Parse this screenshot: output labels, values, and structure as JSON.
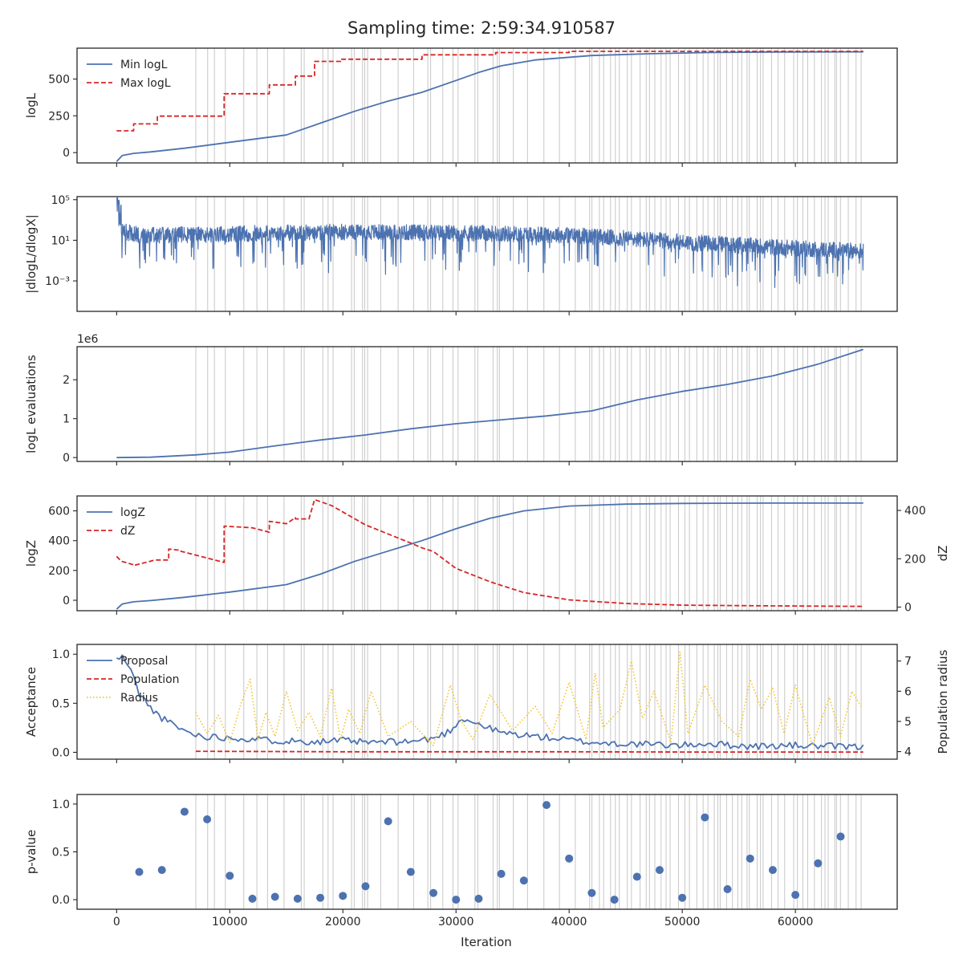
{
  "figure": {
    "title": "Sampling time: 2:59:34.910587",
    "xlabel": "Iteration",
    "xlim": [
      -3500,
      69000
    ],
    "xticks": [
      0,
      10000,
      20000,
      30000,
      40000,
      50000,
      60000
    ],
    "xtick_labels": [
      "0",
      "10000",
      "20000",
      "30000",
      "40000",
      "50000",
      "60000"
    ],
    "colors": {
      "blue": "#4c72b0",
      "red": "#d62728",
      "yellow": "#f2c42f",
      "bounds": "#cccccc"
    }
  },
  "chart_data": [
    {
      "type": "line",
      "ylabel": "logL",
      "ylim": [
        -70,
        710
      ],
      "yticks": [
        0,
        250,
        500
      ],
      "ytick_labels": [
        "0",
        "250",
        "500"
      ],
      "legend": "top-left",
      "series": [
        {
          "name": "Min logL",
          "style": "solid",
          "color": "#4c72b0",
          "x": [
            0,
            500,
            1500,
            3000,
            6000,
            10000,
            15000,
            18000,
            21000,
            24000,
            27000,
            30000,
            32000,
            34000,
            37000,
            42000,
            47000,
            52000,
            58000,
            66000
          ],
          "y": [
            -60,
            -20,
            -5,
            5,
            30,
            70,
            120,
            200,
            280,
            350,
            410,
            490,
            545,
            590,
            630,
            660,
            672,
            680,
            684,
            685
          ]
        },
        {
          "name": "Max logL",
          "style": "dashed",
          "color": "#d62728",
          "x": [
            0,
            1500,
            1500,
            3600,
            3600,
            9500,
            9500,
            13500,
            13500,
            15800,
            15800,
            17500,
            17500,
            19800,
            19800,
            27000,
            27000,
            33500,
            33500,
            40000,
            40000,
            66000
          ],
          "y": [
            148,
            148,
            195,
            195,
            248,
            248,
            400,
            400,
            460,
            460,
            520,
            520,
            620,
            620,
            635,
            635,
            665,
            665,
            680,
            680,
            688,
            688
          ]
        }
      ]
    },
    {
      "type": "line",
      "ylabel": "|dlogL/dlogX|",
      "yscale": "log",
      "ylim_log10": [
        -6,
        5.3
      ],
      "yticks_log10": [
        -3,
        1,
        5
      ],
      "ytick_labels": [
        "10⁻³",
        "10¹",
        "10⁵"
      ],
      "series": [
        {
          "name": "",
          "style": "noisy",
          "color": "#4c72b0",
          "x": [
            0,
            300,
            2000,
            5000,
            10000,
            15000,
            20000,
            30000,
            40000,
            50000,
            60000,
            66000
          ],
          "y_log10": [
            4.2,
            2.0,
            1.6,
            1.6,
            1.7,
            1.8,
            1.9,
            1.8,
            1.6,
            0.9,
            0.3,
            0.0
          ]
        }
      ]
    },
    {
      "type": "line",
      "ylabel": "logL evaluations",
      "offset_label": "1e6",
      "ylim": [
        -0.1,
        2.85
      ],
      "yticks": [
        0,
        1,
        2
      ],
      "ytick_labels": [
        "0",
        "1",
        "2"
      ],
      "series": [
        {
          "name": "",
          "style": "solid",
          "color": "#4c72b0",
          "x": [
            0,
            3000,
            7000,
            10000,
            14000,
            18000,
            22000,
            26000,
            30000,
            34000,
            38000,
            42000,
            46000,
            50000,
            54000,
            58000,
            62000,
            66000
          ],
          "y": [
            0.0,
            0.01,
            0.07,
            0.14,
            0.3,
            0.45,
            0.58,
            0.74,
            0.87,
            0.97,
            1.07,
            1.2,
            1.48,
            1.7,
            1.88,
            2.1,
            2.4,
            2.78
          ]
        }
      ]
    },
    {
      "type": "line",
      "ylabel": "logZ",
      "ylim": [
        -70,
        700
      ],
      "yticks": [
        0,
        200,
        400,
        600
      ],
      "ytick_labels": [
        "0",
        "200",
        "400",
        "600"
      ],
      "y2label": "dZ",
      "y2lim": [
        -15,
        460
      ],
      "y2ticks": [
        0,
        200,
        400
      ],
      "y2tick_labels": [
        "0",
        "200",
        "400"
      ],
      "legend": "top-left",
      "series": [
        {
          "name": "logZ",
          "style": "solid",
          "color": "#4c72b0",
          "axis": "left",
          "x": [
            0,
            500,
            1500,
            3000,
            6000,
            10000,
            15000,
            18000,
            21000,
            24000,
            27000,
            30000,
            33000,
            36000,
            40000,
            45000,
            50000,
            58000,
            66000
          ],
          "y": [
            -60,
            -25,
            -10,
            -2,
            20,
            55,
            105,
            175,
            260,
            330,
            400,
            480,
            550,
            600,
            632,
            645,
            650,
            652,
            652
          ]
        },
        {
          "name": "dZ",
          "style": "dashed",
          "color": "#d62728",
          "axis": "right",
          "x": [
            0,
            400,
            1500,
            1500,
            3000,
            3000,
            3400,
            4600,
            4600,
            5600,
            5600,
            9500,
            9500,
            12000,
            13500,
            13500,
            15000,
            15800,
            15800,
            17000,
            17500,
            17500,
            19000,
            22000,
            26000,
            27000,
            28000,
            30000,
            33000,
            36000,
            40000,
            45000,
            50000,
            58000,
            66000
          ],
          "y": [
            210,
            190,
            175,
            172,
            190,
            190,
            195,
            195,
            240,
            235,
            232,
            185,
            335,
            328,
            310,
            355,
            345,
            370,
            365,
            365,
            445,
            445,
            420,
            340,
            265,
            245,
            230,
            160,
            105,
            60,
            30,
            15,
            8,
            5,
            3
          ]
        }
      ]
    },
    {
      "type": "line",
      "ylabel": "Acceptance",
      "ylim": [
        -0.07,
        1.1
      ],
      "yticks": [
        0,
        0.5,
        1
      ],
      "ytick_labels": [
        "0.0",
        "0.5",
        "1.0"
      ],
      "y2label": "Population radius",
      "y2lim": [
        3.75,
        7.55
      ],
      "y2ticks": [
        4,
        5,
        6,
        7
      ],
      "y2tick_labels": [
        "4",
        "5",
        "6",
        "7"
      ],
      "legend": "top-left",
      "series": [
        {
          "name": "Proposal",
          "style": "solid",
          "color": "#4c72b0",
          "axis": "left",
          "x": [
            0,
            600,
            1200,
            2000,
            3000,
            4000,
            5000,
            6000,
            7000,
            8000,
            10000,
            14000,
            18000,
            20000,
            22000,
            26000,
            28000,
            29500,
            30500,
            34000,
            38000,
            42000,
            44000,
            50000,
            52000,
            56000,
            60000,
            66000
          ],
          "y": [
            0.95,
            0.97,
            0.85,
            0.6,
            0.45,
            0.35,
            0.28,
            0.22,
            0.18,
            0.16,
            0.15,
            0.12,
            0.11,
            0.12,
            0.1,
            0.11,
            0.14,
            0.22,
            0.35,
            0.2,
            0.15,
            0.1,
            0.09,
            0.07,
            0.09,
            0.06,
            0.07,
            0.05
          ]
        },
        {
          "name": "Population",
          "style": "dashed",
          "color": "#d62728",
          "axis": "left",
          "x": [
            7000,
            20000,
            30000,
            40000,
            50000,
            60000,
            66000
          ],
          "y": [
            0.01,
            0.005,
            0.005,
            0.005,
            0.003,
            0.003,
            0.003
          ]
        },
        {
          "name": "Radius",
          "style": "dotted",
          "color": "#f2c42f",
          "axis": "right",
          "x": [
            7000,
            8000,
            9000,
            10000,
            11000,
            11800,
            12500,
            13200,
            14000,
            15000,
            16000,
            17000,
            18000,
            19000,
            19800,
            20500,
            21500,
            22500,
            24000,
            26000,
            28000,
            29500,
            30500,
            31500,
            33000,
            35000,
            37000,
            38500,
            40000,
            41500,
            42300,
            43000,
            44500,
            45500,
            46500,
            47500,
            49000,
            49800,
            50500,
            52000,
            53500,
            55000,
            56000,
            57000,
            58000,
            59000,
            60000,
            61500,
            63000,
            64000,
            65000,
            65800
          ],
          "y": [
            5.3,
            4.6,
            5.2,
            4.3,
            5.6,
            6.4,
            4.4,
            5.3,
            4.5,
            6.0,
            4.7,
            5.3,
            4.5,
            6.1,
            4.4,
            5.4,
            4.6,
            6.0,
            4.5,
            5.0,
            4.2,
            6.2,
            5.0,
            4.4,
            5.9,
            4.7,
            5.5,
            4.6,
            6.3,
            4.4,
            6.6,
            4.8,
            5.4,
            7.0,
            5.1,
            6.0,
            4.3,
            7.3,
            4.6,
            6.2,
            5.0,
            4.5,
            6.4,
            5.4,
            6.1,
            4.6,
            6.2,
            4.2,
            5.8,
            4.5,
            6.0,
            5.5
          ]
        }
      ]
    },
    {
      "type": "scatter",
      "ylabel": "p-value",
      "ylim": [
        -0.1,
        1.1
      ],
      "yticks": [
        0,
        0.5,
        1
      ],
      "ytick_labels": [
        "0.0",
        "0.5",
        "1.0"
      ],
      "series": [
        {
          "name": "",
          "color": "#4c72b0",
          "x": [
            2000,
            4000,
            6000,
            8000,
            10000,
            12000,
            14000,
            16000,
            18000,
            20000,
            22000,
            24000,
            26000,
            28000,
            30000,
            32000,
            34000,
            36000,
            38000,
            40000,
            42000,
            44000,
            46000,
            48000,
            50000,
            52000,
            54000,
            56000,
            58000,
            60000,
            62000,
            64000
          ],
          "y": [
            0.29,
            0.31,
            0.92,
            0.84,
            0.25,
            0.01,
            0.03,
            0.01,
            0.02,
            0.04,
            0.14,
            0.82,
            0.29,
            0.07,
            0.0,
            0.01,
            0.27,
            0.2,
            0.99,
            0.43,
            0.07,
            0.0,
            0.24,
            0.31,
            0.02,
            0.86,
            0.11,
            0.43,
            0.31,
            0.05,
            0.38,
            0.66
          ]
        }
      ]
    }
  ]
}
